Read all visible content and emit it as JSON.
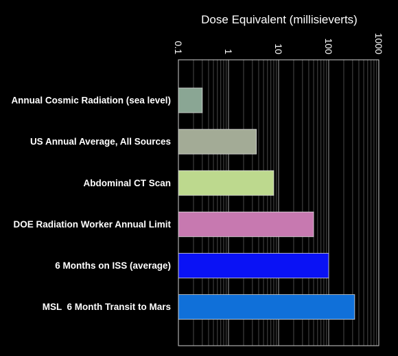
{
  "chart_data": {
    "type": "bar",
    "orientation": "horizontal",
    "xlabel": "Dose Equivalent (millisieverts)",
    "x_scale": "log",
    "xlim": [
      0.1,
      1000
    ],
    "x_ticks": [
      "0.1",
      "1",
      "10",
      "100",
      "1000"
    ],
    "x_tick_values": [
      0.1,
      1,
      10,
      100,
      1000
    ],
    "grid": true,
    "categories": [
      "Annual Cosmic Radiation (sea level)",
      "US Annual Average, All Sources",
      "Abdominal CT Scan",
      "DOE Radiation Worker Annual Limit",
      "6 Months on ISS (average)",
      "MSL  6 Month Transit to Mars"
    ],
    "values": [
      0.3,
      3.6,
      8,
      50,
      100,
      330
    ],
    "colors": [
      "#8aa694",
      "#a3ab96",
      "#bdd98e",
      "#c779b0",
      "#0a12f5",
      "#1070d9"
    ]
  }
}
